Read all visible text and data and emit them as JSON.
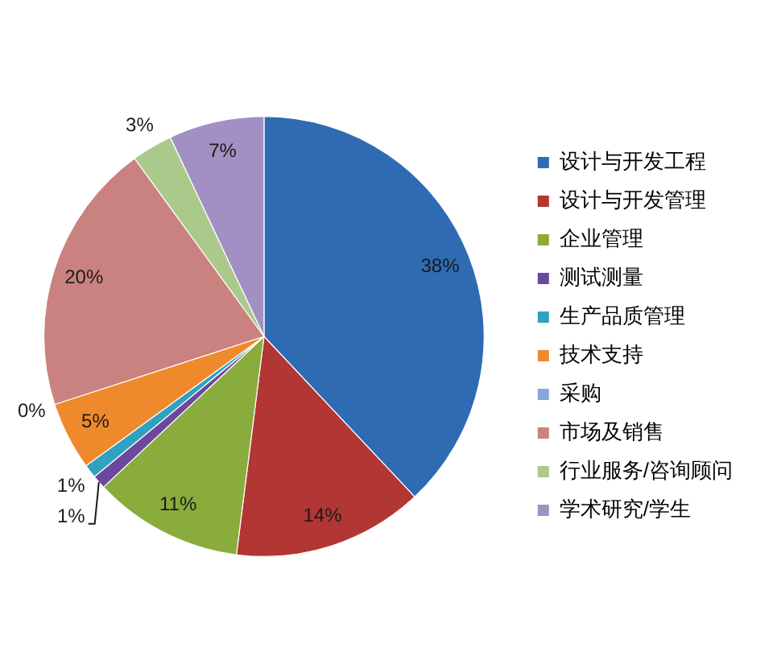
{
  "chart_data": {
    "type": "pie",
    "categories": [
      "设计与开发工程",
      "设计与开发管理",
      "企业管理",
      "测试测量",
      "生产品质管理",
      "技术支持",
      "采购",
      "市场及销售",
      "行业服务/咨询顾问",
      "学术研究/学生"
    ],
    "values": [
      38,
      14,
      11,
      1,
      1,
      5,
      0,
      20,
      3,
      7
    ],
    "colors": [
      "#2f6bb3",
      "#b23633",
      "#89ac3d",
      "#6d479d",
      "#2ea2bf",
      "#ef8a2c",
      "#8aa6d6",
      "#c9827f",
      "#aac98a",
      "#a28fc3"
    ],
    "value_labels": [
      "38%",
      "14%",
      "11%",
      "1%",
      "1%",
      "5%",
      "0%",
      "20%",
      "3%",
      "7%"
    ],
    "legend": "right"
  }
}
